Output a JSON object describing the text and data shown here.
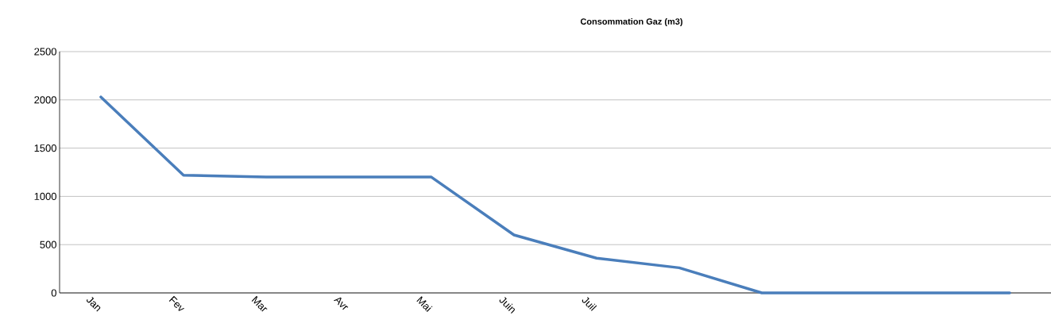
{
  "chart_data": {
    "type": "line",
    "title": "Consommation Gaz (m3)",
    "categories": [
      "Jan",
      "Fev",
      "Mar",
      "Avr",
      "Mai",
      "Juin",
      "Juil",
      null,
      null,
      null,
      null,
      null
    ],
    "values": [
      2030,
      1220,
      1200,
      1200,
      1200,
      600,
      360,
      260,
      0,
      0,
      0,
      0
    ],
    "color": "#4a7ebb",
    "ylim": [
      0,
      2500
    ],
    "yticks": [
      0,
      500,
      1000,
      1500,
      2000,
      2500
    ],
    "grid": "y"
  }
}
